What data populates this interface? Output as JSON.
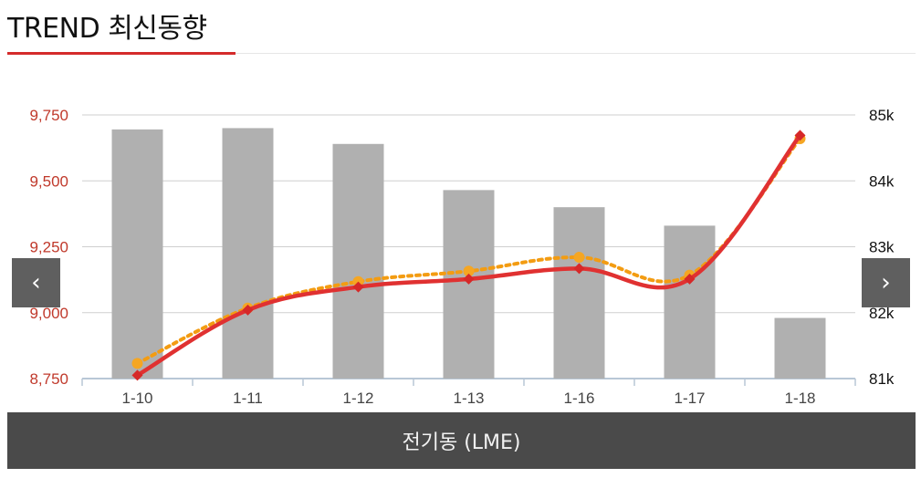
{
  "header": {
    "title": "TREND 최신동향"
  },
  "nav": {
    "prev_label": "‹",
    "next_label": "›",
    "prev_icon": "chevron-left-icon",
    "next_icon": "chevron-right-icon"
  },
  "caption": {
    "label": "전기동 (LME)"
  },
  "colors": {
    "bars": "#b0b0b0",
    "line": "#e03131",
    "line_markers": "#d62828",
    "dotted": "#f39c12",
    "dotted_markers": "#f5a623",
    "accent": "#d42b2b"
  },
  "chart_data": {
    "type": "bar",
    "categories": [
      "1-10",
      "1-11",
      "1-12",
      "1-13",
      "1-16",
      "1-17",
      "1-18"
    ],
    "left_axis": {
      "ticks": [
        "9,750",
        "9,500",
        "9,250",
        "9,000",
        "8,750"
      ],
      "tick_values": [
        9750,
        9500,
        9250,
        9000,
        8750
      ],
      "ylim": [
        8750,
        9750
      ]
    },
    "right_axis": {
      "ticks": [
        "85k",
        "84k",
        "83k",
        "82k",
        "81k"
      ],
      "tick_values": [
        85000,
        84000,
        83000,
        82000,
        81000
      ],
      "ylim": [
        81000,
        85000
      ]
    },
    "series": [
      {
        "kind": "bar",
        "axis": "left",
        "values": [
          9695,
          9700,
          9640,
          9465,
          9400,
          9330,
          8980
        ]
      },
      {
        "kind": "line",
        "axis": "right",
        "style": "solid",
        "values": [
          81050,
          82040,
          82390,
          82510,
          82670,
          82510,
          84690
        ]
      },
      {
        "kind": "line",
        "axis": "right",
        "style": "dotted",
        "values": [
          81230,
          82070,
          82470,
          82630,
          82840,
          82570,
          84640
        ]
      }
    ],
    "grid": true,
    "legend": "none"
  }
}
